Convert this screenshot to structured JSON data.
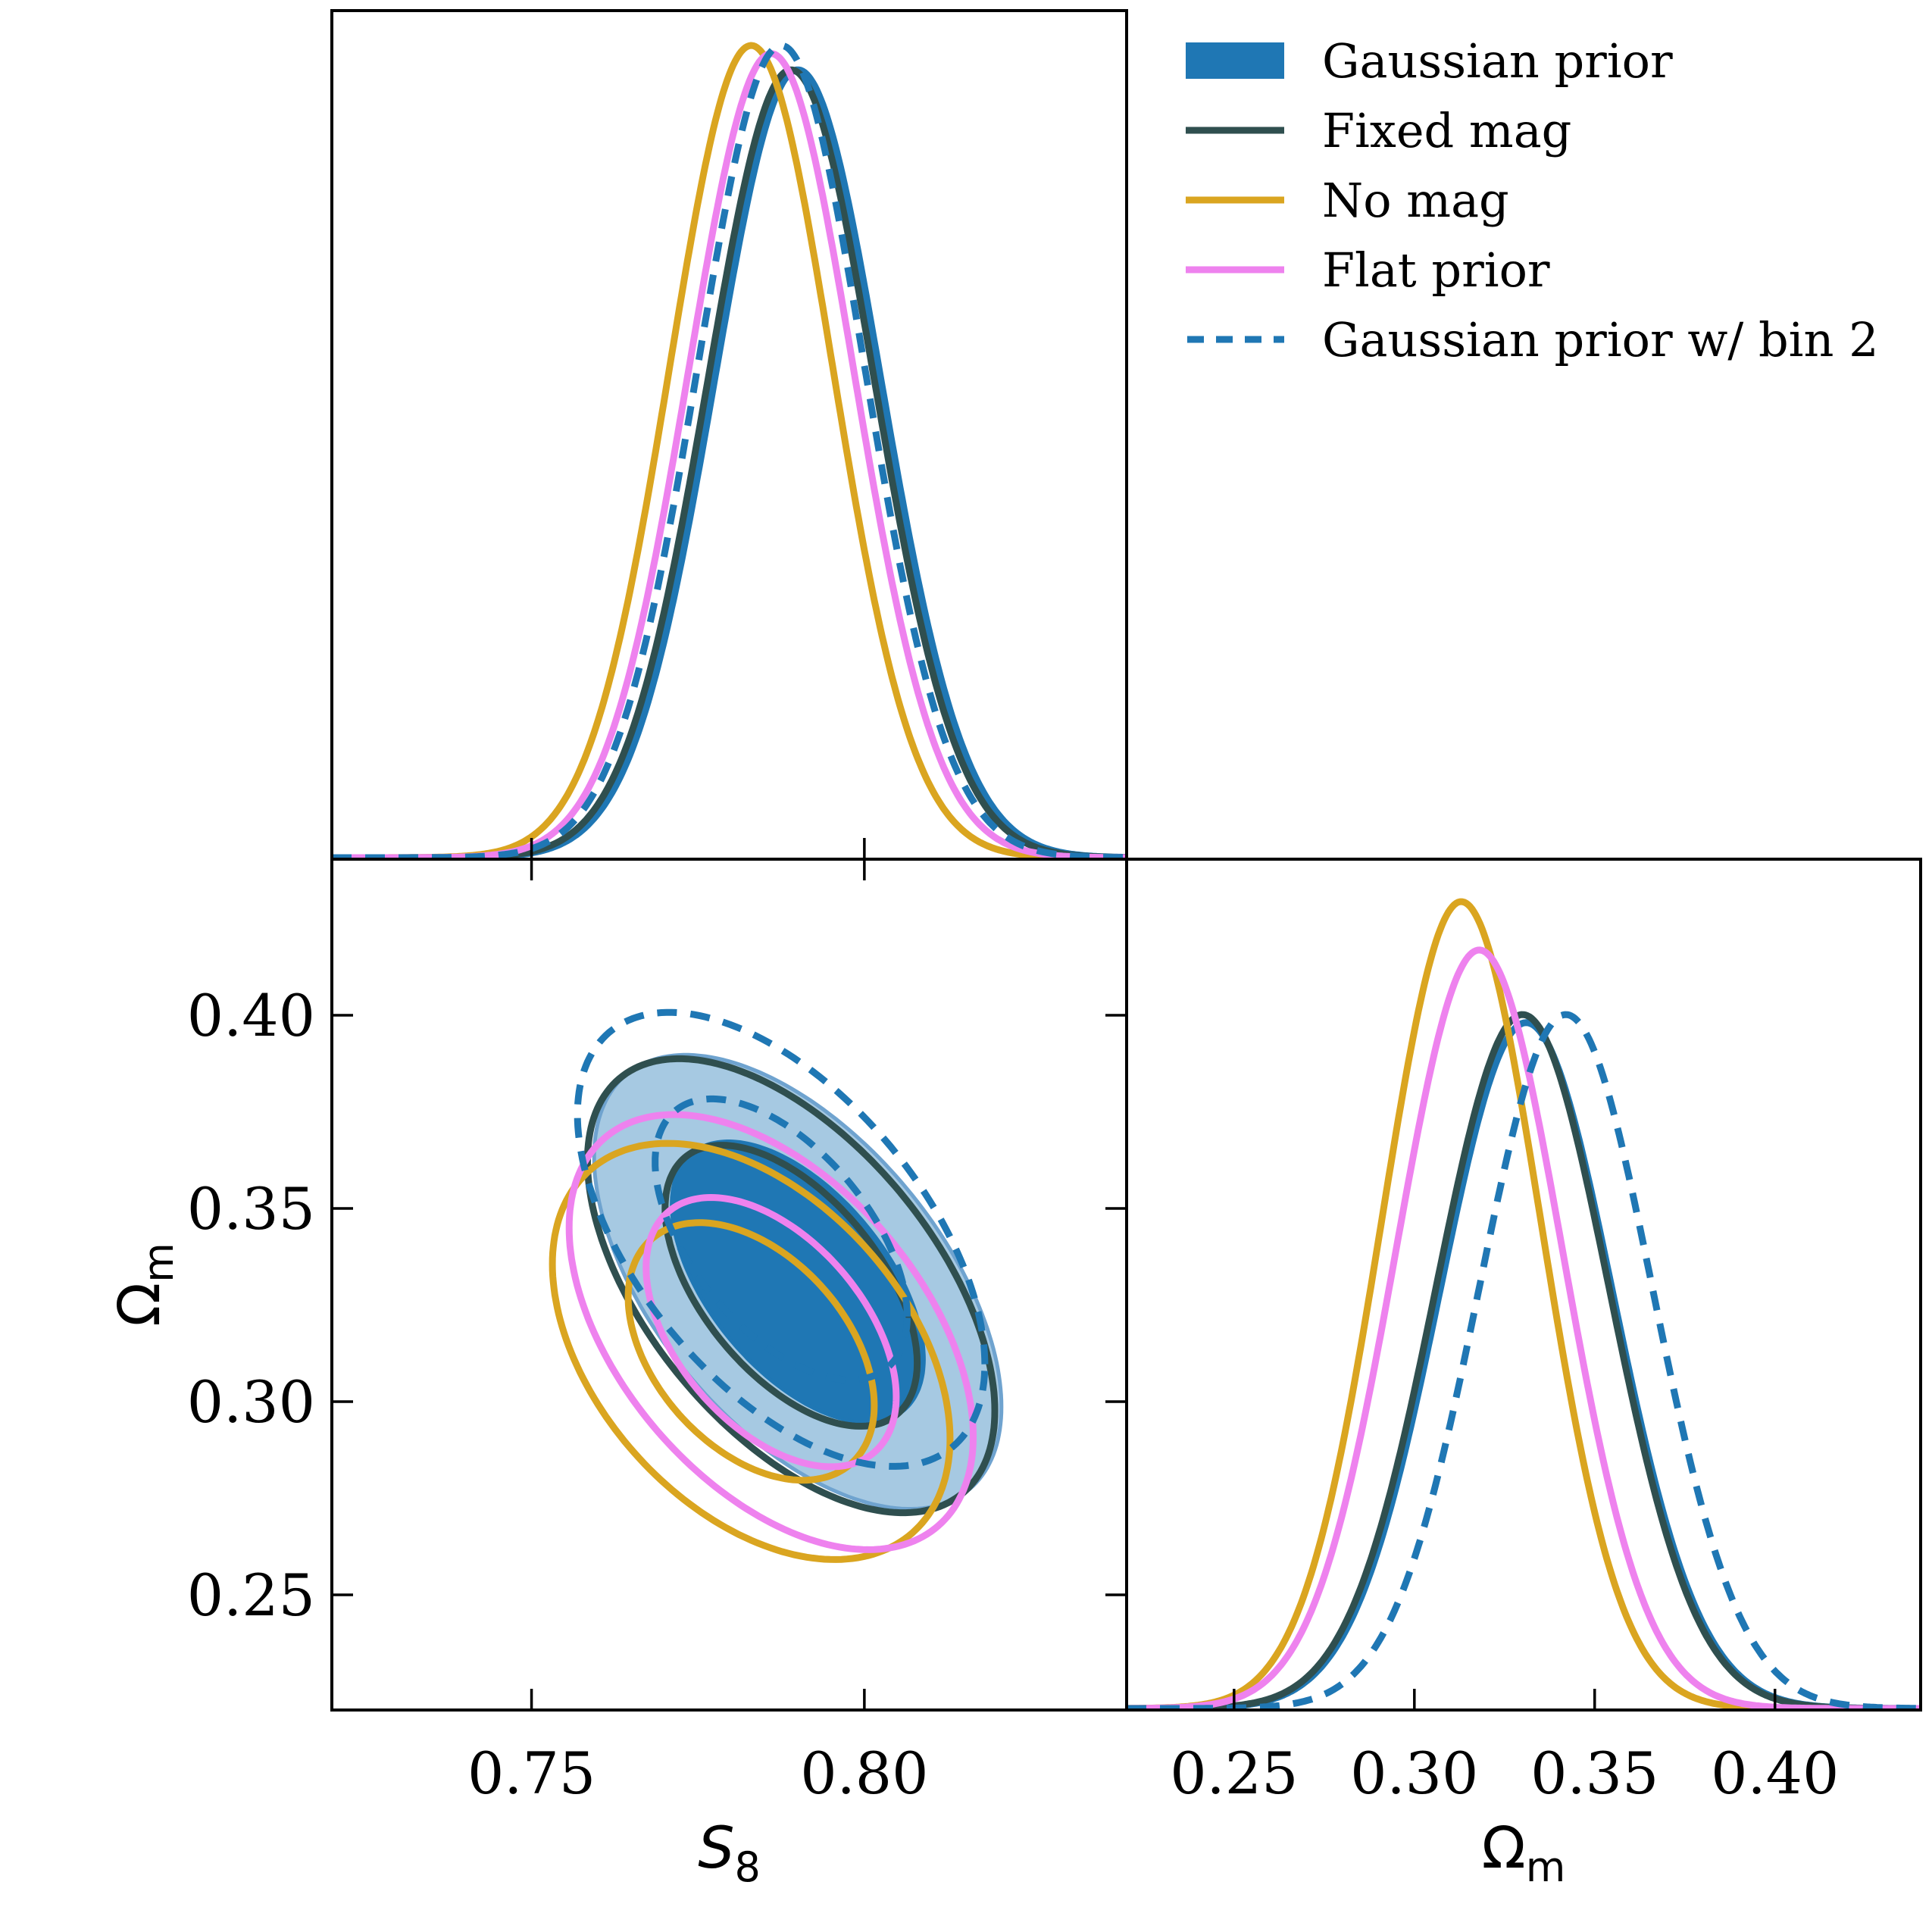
{
  "chart_data": {
    "type": "corner",
    "parameters": [
      {
        "name": "S8",
        "label_main": "S",
        "label_sub": "8",
        "italic": true,
        "range": [
          0.72,
          0.8394
        ],
        "ticks": [
          0.75,
          0.8
        ],
        "tick_labels": [
          "0.75",
          "0.80"
        ]
      },
      {
        "name": "Omega_m",
        "label_main": "Ω",
        "label_sub": "m",
        "italic": false,
        "range": [
          0.2202,
          0.4404
        ],
        "ticks": [
          0.25,
          0.3,
          0.35,
          0.4
        ],
        "tick_labels": [
          "0.25",
          "0.30",
          "0.35",
          "0.40"
        ]
      }
    ],
    "panels": [
      {
        "id": "s8-marginal",
        "type": "line",
        "x_param": "S8",
        "y": "normalized density"
      },
      {
        "id": "s8-omegam-2d",
        "type": "contour",
        "x_param": "S8",
        "y_param": "Omega_m",
        "levels": [
          "68%",
          "95%"
        ]
      },
      {
        "id": "omegam-marginal",
        "type": "line",
        "x_param": "Omega_m",
        "y": "normalized density"
      }
    ],
    "series": [
      {
        "name": "Gaussian prior",
        "style": "filled",
        "color": "#1f77b4",
        "fill_inner": "#1f77b4",
        "fill_outer": "#a6c9e2",
        "S8_mean": 0.79,
        "S8_sigma": 0.0125,
        "Om_mean": 0.331,
        "Om_sigma": 0.024,
        "corr": -0.55,
        "S8_peak": 0.97,
        "Om_peak": 0.85
      },
      {
        "name": "Fixed mag",
        "style": "solid",
        "color": "#2f4f4f",
        "S8_mean": 0.789,
        "S8_sigma": 0.0125,
        "Om_mean": 0.33,
        "Om_sigma": 0.024,
        "corr": -0.55,
        "S8_peak": 0.97,
        "Om_peak": 0.86
      },
      {
        "name": "No mag",
        "style": "solid",
        "color": "#daa520",
        "S8_mean": 0.783,
        "S8_sigma": 0.0122,
        "Om_mean": 0.313,
        "Om_sigma": 0.022,
        "corr": -0.42,
        "S8_peak": 1.0,
        "Om_peak": 1.0
      },
      {
        "name": "Flat prior",
        "style": "solid",
        "color": "#ee82ee",
        "S8_mean": 0.786,
        "S8_sigma": 0.0124,
        "Om_mean": 0.318,
        "Om_sigma": 0.023,
        "corr": -0.48,
        "S8_peak": 0.99,
        "Om_peak": 0.94
      },
      {
        "name": "Gaussian prior w/ bin 2",
        "style": "dashed",
        "color": "#1f77b4",
        "S8_mean": 0.7875,
        "S8_sigma": 0.0125,
        "Om_mean": 0.342,
        "Om_sigma": 0.024,
        "corr": -0.55,
        "S8_peak": 1.0,
        "Om_peak": 0.86
      }
    ],
    "legend": {
      "placement": "top-right",
      "entries": [
        "Gaussian prior",
        "Fixed mag",
        "No mag",
        "Flat prior",
        "Gaussian prior w/ bin 2"
      ]
    }
  }
}
